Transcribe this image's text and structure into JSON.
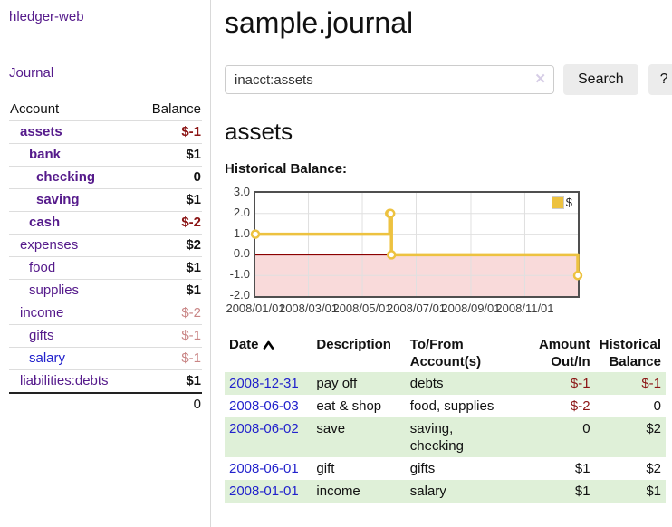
{
  "app": {
    "brand": "hledger-web",
    "nav": {
      "journal": "Journal"
    }
  },
  "sidebar": {
    "headers": {
      "account": "Account",
      "balance": "Balance"
    },
    "accounts": [
      {
        "name": "assets",
        "balance": "$-1"
      },
      {
        "name": "bank",
        "balance": "$1"
      },
      {
        "name": "checking",
        "balance": "0"
      },
      {
        "name": "saving",
        "balance": "$1"
      },
      {
        "name": "cash",
        "balance": "$-2"
      },
      {
        "name": "expenses",
        "balance": "$2"
      },
      {
        "name": "food",
        "balance": "$1"
      },
      {
        "name": "supplies",
        "balance": "$1"
      },
      {
        "name": "income",
        "balance": "$-2"
      },
      {
        "name": "gifts",
        "balance": "$-1"
      },
      {
        "name": "salary",
        "balance": "$-1"
      },
      {
        "name": "liabilities:debts",
        "balance": "$1"
      }
    ],
    "total": "0"
  },
  "main": {
    "title": "sample.journal",
    "search": {
      "value": "inacct:assets",
      "clear_icon": "✕",
      "search_button": "Search",
      "help_button": "?"
    },
    "account_heading": "assets",
    "chart_heading": "Historical Balance:"
  },
  "chart_data": {
    "type": "line",
    "step": true,
    "title": "Historical Balance:",
    "x_range": [
      "2008-01-01",
      "2008-12-31"
    ],
    "y_range": [
      -2,
      3
    ],
    "grid": true,
    "legend_position": "top-right",
    "y_ticks": [
      {
        "label": "3.0",
        "value": 3
      },
      {
        "label": "2.0",
        "value": 2
      },
      {
        "label": "1.0",
        "value": 1
      },
      {
        "label": "0.0",
        "value": 0
      },
      {
        "label": "-1.0",
        "value": -1
      },
      {
        "label": "-2.0",
        "value": -2
      }
    ],
    "x_ticks": [
      {
        "label": "2008/01/01",
        "date": "2008-01-01"
      },
      {
        "label": "2008/03/01",
        "date": "2008-03-01"
      },
      {
        "label": "2008/05/01",
        "date": "2008-05-01"
      },
      {
        "label": "2008/07/01",
        "date": "2008-07-01"
      },
      {
        "label": "2008/09/01",
        "date": "2008-09-01"
      },
      {
        "label": "2008/11/01",
        "date": "2008-11-01"
      }
    ],
    "series": [
      {
        "name": "$",
        "color": "#edc240",
        "points": [
          {
            "date": "2008-01-01",
            "value": 1
          },
          {
            "date": "2008-06-01",
            "value": 2
          },
          {
            "date": "2008-06-02",
            "value": 2
          },
          {
            "date": "2008-06-03",
            "value": 0
          },
          {
            "date": "2008-12-31",
            "value": -1
          }
        ]
      }
    ],
    "negative_region_color": "#f9dada",
    "zero_line_color": "#8b0000",
    "grid_color": "#e0e0e0"
  },
  "register": {
    "headers": {
      "date": "Date",
      "description": "Description",
      "account_line1": "To/From",
      "account_line2": "Account(s)",
      "amount_line1": "Amount",
      "amount_line2": "Out/In",
      "balance_line1": "Historical",
      "balance_line2": "Balance"
    },
    "rows": [
      {
        "date": "2008-12-31",
        "description": "pay off",
        "accounts": "debts",
        "amount": "$-1",
        "balance": "$-1"
      },
      {
        "date": "2008-06-03",
        "description": "eat & shop",
        "accounts": "food, supplies",
        "amount": "$-2",
        "balance": "0"
      },
      {
        "date": "2008-06-02",
        "description": "save",
        "accounts": "saving,\nchecking",
        "amount": "0",
        "balance": "$2"
      },
      {
        "date": "2008-06-01",
        "description": "gift",
        "accounts": "gifts",
        "amount": "$1",
        "balance": "$2"
      },
      {
        "date": "2008-01-01",
        "description": "income",
        "accounts": "salary",
        "amount": "$1",
        "balance": "$1"
      }
    ]
  }
}
